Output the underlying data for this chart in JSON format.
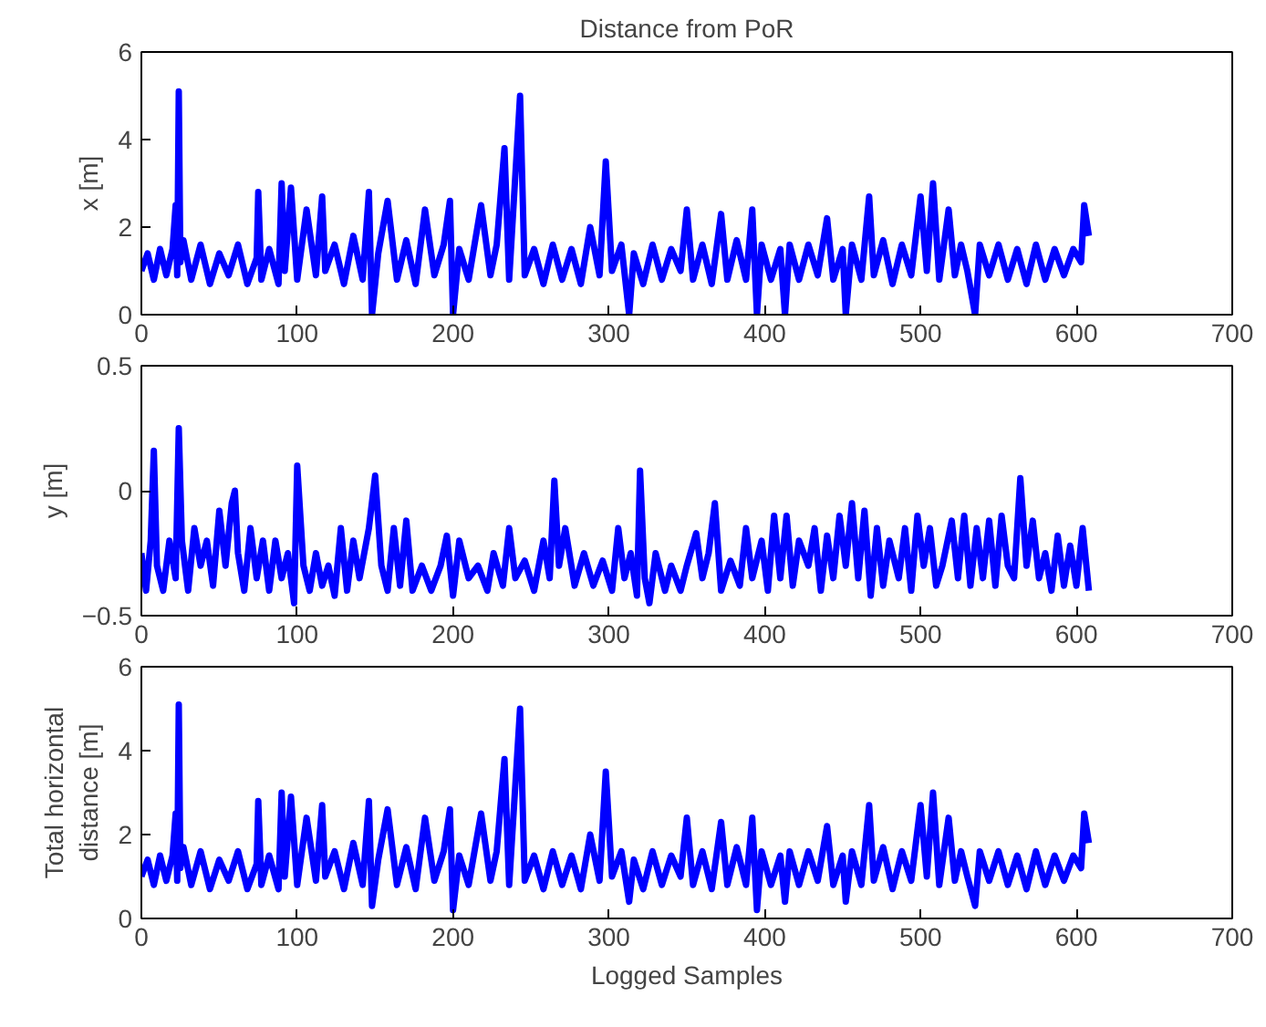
{
  "chart_data": [
    {
      "type": "line",
      "title": "Distance from PoR",
      "ylabel": "x [m]",
      "xlim": [
        0,
        700
      ],
      "xticks": [
        0,
        100,
        200,
        300,
        400,
        500,
        600,
        700
      ],
      "ylim": [
        0,
        6
      ],
      "yticks": [
        0,
        2,
        4,
        6
      ],
      "grid": false,
      "series": [
        {
          "color": "#0000ff",
          "x": [
            0,
            4,
            8,
            12,
            16,
            20,
            22,
            23,
            24,
            25,
            27,
            32,
            38,
            44,
            50,
            56,
            62,
            68,
            74,
            75,
            77,
            82,
            88,
            90,
            92,
            96,
            100,
            106,
            112,
            116,
            118,
            124,
            130,
            136,
            142,
            146,
            148,
            152,
            158,
            164,
            170,
            176,
            182,
            188,
            194,
            198,
            200,
            204,
            210,
            218,
            224,
            228,
            233,
            236,
            243,
            246,
            252,
            258,
            264,
            270,
            276,
            282,
            288,
            294,
            298,
            302,
            308,
            313,
            316,
            322,
            328,
            334,
            340,
            346,
            350,
            354,
            360,
            366,
            372,
            376,
            382,
            388,
            392,
            395,
            398,
            404,
            410,
            413,
            416,
            422,
            428,
            434,
            440,
            444,
            450,
            452,
            456,
            462,
            467,
            470,
            476,
            482,
            488,
            494,
            500,
            504,
            508,
            512,
            518,
            522,
            526,
            530,
            535,
            538,
            544,
            550,
            556,
            562,
            568,
            574,
            580,
            586,
            592,
            598,
            603,
            605,
            608
          ],
          "values": [
            1.0,
            1.4,
            0.8,
            1.5,
            0.9,
            1.5,
            2.5,
            0.9,
            5.1,
            1.2,
            1.7,
            0.8,
            1.6,
            0.7,
            1.4,
            0.9,
            1.6,
            0.7,
            1.3,
            2.8,
            0.8,
            1.5,
            0.7,
            3.0,
            1.0,
            2.9,
            0.8,
            2.4,
            0.9,
            2.7,
            1.0,
            1.6,
            0.7,
            1.8,
            0.8,
            2.8,
            0.0,
            1.4,
            2.6,
            0.8,
            1.7,
            0.7,
            2.4,
            0.9,
            1.6,
            2.6,
            0.0,
            1.5,
            0.8,
            2.5,
            0.9,
            1.6,
            3.8,
            0.8,
            5.0,
            0.9,
            1.5,
            0.7,
            1.6,
            0.8,
            1.5,
            0.7,
            2.0,
            0.9,
            3.5,
            1.0,
            1.6,
            0.0,
            1.4,
            0.7,
            1.6,
            0.8,
            1.5,
            1.0,
            2.4,
            0.8,
            1.6,
            0.7,
            2.3,
            0.8,
            1.7,
            0.8,
            2.4,
            0.0,
            1.6,
            0.8,
            1.5,
            0.0,
            1.6,
            0.8,
            1.6,
            0.9,
            2.2,
            0.8,
            1.5,
            0.0,
            1.6,
            0.8,
            2.7,
            0.9,
            1.7,
            0.7,
            1.6,
            0.9,
            2.7,
            1.0,
            3.0,
            0.8,
            2.4,
            0.9,
            1.6,
            1.0,
            0.0,
            1.6,
            0.9,
            1.6,
            0.8,
            1.5,
            0.7,
            1.6,
            0.8,
            1.5,
            0.9,
            1.5,
            1.2,
            2.5,
            1.8
          ]
        }
      ]
    },
    {
      "type": "line",
      "ylabel": "y [m]",
      "xlim": [
        0,
        700
      ],
      "xticks": [
        0,
        100,
        200,
        300,
        400,
        500,
        600,
        700
      ],
      "ylim": [
        -0.5,
        0.5
      ],
      "yticks": [
        -0.5,
        0,
        0.5
      ],
      "grid": false,
      "series": [
        {
          "color": "#0000ff",
          "x": [
            0,
            3,
            6,
            8,
            10,
            14,
            18,
            22,
            24,
            26,
            30,
            34,
            38,
            42,
            46,
            50,
            54,
            58,
            60,
            62,
            66,
            70,
            74,
            78,
            82,
            86,
            90,
            94,
            98,
            100,
            104,
            108,
            112,
            116,
            120,
            124,
            128,
            132,
            136,
            140,
            146,
            150,
            154,
            158,
            162,
            166,
            170,
            174,
            180,
            186,
            192,
            196,
            200,
            204,
            210,
            216,
            222,
            226,
            232,
            236,
            240,
            246,
            252,
            258,
            262,
            265,
            268,
            272,
            278,
            284,
            290,
            296,
            302,
            306,
            310,
            314,
            318,
            320,
            323,
            326,
            330,
            336,
            340,
            346,
            350,
            356,
            360,
            364,
            368,
            372,
            378,
            384,
            388,
            392,
            398,
            402,
            406,
            410,
            414,
            418,
            422,
            428,
            432,
            436,
            440,
            444,
            448,
            452,
            456,
            460,
            464,
            468,
            472,
            476,
            480,
            486,
            490,
            494,
            498,
            502,
            506,
            510,
            514,
            520,
            524,
            528,
            532,
            536,
            540,
            544,
            548,
            552,
            556,
            560,
            564,
            568,
            572,
            576,
            580,
            584,
            588,
            592,
            596,
            600,
            604,
            608
          ],
          "values": [
            -0.25,
            -0.4,
            -0.2,
            0.16,
            -0.3,
            -0.4,
            -0.2,
            -0.35,
            0.25,
            -0.2,
            -0.4,
            -0.15,
            -0.3,
            -0.2,
            -0.38,
            -0.08,
            -0.3,
            -0.05,
            0.0,
            -0.25,
            -0.4,
            -0.15,
            -0.35,
            -0.2,
            -0.4,
            -0.2,
            -0.35,
            -0.25,
            -0.45,
            0.1,
            -0.3,
            -0.4,
            -0.25,
            -0.38,
            -0.3,
            -0.42,
            -0.15,
            -0.4,
            -0.2,
            -0.35,
            -0.15,
            0.06,
            -0.3,
            -0.4,
            -0.15,
            -0.38,
            -0.12,
            -0.4,
            -0.3,
            -0.4,
            -0.3,
            -0.18,
            -0.42,
            -0.2,
            -0.35,
            -0.3,
            -0.4,
            -0.25,
            -0.38,
            -0.15,
            -0.35,
            -0.28,
            -0.4,
            -0.2,
            -0.35,
            0.04,
            -0.3,
            -0.15,
            -0.38,
            -0.25,
            -0.38,
            -0.28,
            -0.4,
            -0.15,
            -0.35,
            -0.25,
            -0.42,
            0.08,
            -0.35,
            -0.45,
            -0.25,
            -0.4,
            -0.3,
            -0.4,
            -0.3,
            -0.17,
            -0.35,
            -0.25,
            -0.05,
            -0.4,
            -0.28,
            -0.38,
            -0.15,
            -0.35,
            -0.2,
            -0.4,
            -0.1,
            -0.35,
            -0.1,
            -0.38,
            -0.2,
            -0.3,
            -0.15,
            -0.4,
            -0.18,
            -0.35,
            -0.1,
            -0.3,
            -0.05,
            -0.35,
            -0.08,
            -0.42,
            -0.15,
            -0.38,
            -0.2,
            -0.35,
            -0.15,
            -0.4,
            -0.1,
            -0.3,
            -0.15,
            -0.38,
            -0.3,
            -0.12,
            -0.35,
            -0.1,
            -0.38,
            -0.15,
            -0.35,
            -0.12,
            -0.38,
            -0.1,
            -0.3,
            -0.35,
            0.05,
            -0.3,
            -0.12,
            -0.35,
            -0.25,
            -0.4,
            -0.18,
            -0.38,
            -0.22,
            -0.38,
            -0.15,
            -0.4
          ]
        }
      ]
    },
    {
      "type": "line",
      "xlabel": "Logged Samples",
      "ylabel": "Total horizontal\ndistance [m]",
      "xlim": [
        0,
        700
      ],
      "xticks": [
        0,
        100,
        200,
        300,
        400,
        500,
        600,
        700
      ],
      "ylim": [
        0,
        6
      ],
      "yticks": [
        0,
        2,
        4,
        6
      ],
      "grid": false,
      "series": [
        {
          "color": "#0000ff",
          "x": [
            0,
            4,
            8,
            12,
            16,
            20,
            22,
            23,
            24,
            25,
            27,
            32,
            38,
            44,
            50,
            56,
            62,
            68,
            74,
            75,
            77,
            82,
            88,
            90,
            92,
            96,
            100,
            106,
            112,
            116,
            118,
            124,
            130,
            136,
            142,
            146,
            148,
            152,
            158,
            164,
            170,
            176,
            182,
            188,
            194,
            198,
            200,
            204,
            210,
            218,
            224,
            228,
            233,
            236,
            243,
            246,
            252,
            258,
            264,
            270,
            276,
            282,
            288,
            294,
            298,
            302,
            308,
            313,
            316,
            322,
            328,
            334,
            340,
            346,
            350,
            354,
            360,
            366,
            372,
            376,
            382,
            388,
            392,
            395,
            398,
            404,
            410,
            413,
            416,
            422,
            428,
            434,
            440,
            444,
            450,
            452,
            456,
            462,
            467,
            470,
            476,
            482,
            488,
            494,
            500,
            504,
            508,
            512,
            518,
            522,
            526,
            530,
            535,
            538,
            544,
            550,
            556,
            562,
            568,
            574,
            580,
            586,
            592,
            598,
            603,
            605,
            608
          ],
          "values": [
            1.0,
            1.4,
            0.8,
            1.5,
            0.9,
            1.5,
            2.5,
            0.9,
            5.1,
            1.2,
            1.7,
            0.8,
            1.6,
            0.7,
            1.4,
            0.9,
            1.6,
            0.7,
            1.3,
            2.8,
            0.8,
            1.5,
            0.7,
            3.0,
            1.0,
            2.9,
            0.8,
            2.4,
            0.9,
            2.7,
            1.0,
            1.6,
            0.7,
            1.8,
            0.8,
            2.8,
            0.3,
            1.4,
            2.6,
            0.8,
            1.7,
            0.7,
            2.4,
            0.9,
            1.6,
            2.6,
            0.2,
            1.5,
            0.8,
            2.5,
            0.9,
            1.6,
            3.8,
            0.8,
            5.0,
            0.9,
            1.5,
            0.7,
            1.6,
            0.8,
            1.5,
            0.7,
            2.0,
            0.9,
            3.5,
            1.0,
            1.6,
            0.4,
            1.4,
            0.7,
            1.6,
            0.8,
            1.5,
            1.0,
            2.4,
            0.8,
            1.6,
            0.7,
            2.3,
            0.8,
            1.7,
            0.8,
            2.4,
            0.2,
            1.6,
            0.8,
            1.5,
            0.4,
            1.6,
            0.8,
            1.6,
            0.9,
            2.2,
            0.8,
            1.5,
            0.4,
            1.6,
            0.8,
            2.7,
            0.9,
            1.7,
            0.7,
            1.6,
            0.9,
            2.7,
            1.0,
            3.0,
            0.8,
            2.4,
            0.9,
            1.6,
            1.0,
            0.3,
            1.6,
            0.9,
            1.6,
            0.8,
            1.5,
            0.7,
            1.6,
            0.8,
            1.5,
            0.9,
            1.5,
            1.2,
            2.5,
            1.8
          ]
        }
      ]
    }
  ]
}
